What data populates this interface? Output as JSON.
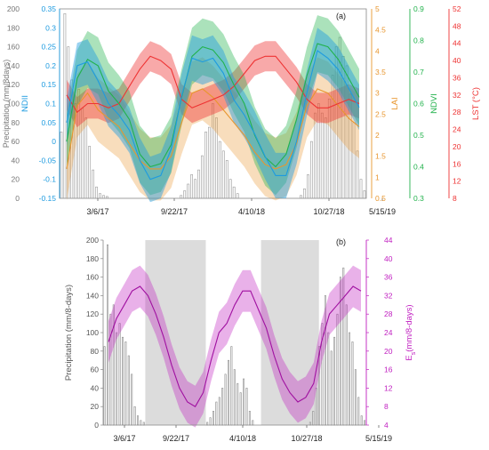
{
  "figure": {
    "panel_a_label": "(a)",
    "panel_b_label": "(b)",
    "colors": {
      "ndii": "#1e9be0",
      "lai": "#e8962e",
      "ndvi": "#22b24c",
      "lst": "#ee3333",
      "es": "#c020c0",
      "precip": "#999999",
      "shade": "#dcdcdc"
    }
  },
  "chart_data": [
    {
      "type": "line",
      "panel": "(a)",
      "x_ticks": [
        "3/6/17",
        "9/22/17",
        "4/10/18",
        "10/27/18",
        "5/15/19"
      ],
      "axes": {
        "precip": {
          "label": "Precipitation (mm/8days)",
          "range": [
            0,
            200
          ],
          "ticks": [
            0,
            20,
            40,
            60,
            80,
            100,
            120,
            140,
            160,
            180,
            200
          ]
        },
        "ndii": {
          "label": "NDII",
          "range": [
            -0.15,
            0.35
          ],
          "ticks": [
            -0.15,
            -0.1,
            -0.05,
            0,
            0.05,
            0.1,
            0.15,
            0.2,
            0.25,
            0.3,
            0.35
          ]
        },
        "lai": {
          "label": "LAI",
          "range": [
            0.5,
            5
          ],
          "ticks": [
            0.5,
            1,
            1.5,
            2,
            2.5,
            3,
            3.5,
            4,
            4.5,
            5
          ]
        },
        "ndvi": {
          "label": "NDVI",
          "range": [
            0.3,
            0.9
          ],
          "ticks": [
            0.3,
            0.4,
            0.5,
            0.6,
            0.7,
            0.8,
            0.9
          ]
        },
        "lst": {
          "label": "LST (°C)",
          "range": [
            8,
            52
          ],
          "ticks": [
            8,
            12,
            16,
            20,
            24,
            28,
            32,
            36,
            40,
            44,
            48,
            52
          ]
        }
      },
      "series": [
        {
          "key": "ndii",
          "axis": "ndii",
          "band": 0.06,
          "values": [
            0.05,
            0.2,
            0.21,
            0.16,
            0.1,
            0.07,
            0.03,
            -0.05,
            -0.1,
            -0.09,
            -0.02,
            0.12,
            0.22,
            0.21,
            0.22,
            0.18,
            0.11,
            0.07,
            0.02,
            -0.04,
            -0.09,
            -0.09,
            0.0,
            0.13,
            0.24,
            0.22,
            0.19,
            0.14,
            0.09
          ]
        },
        {
          "key": "ndvi",
          "axis": "ndvi",
          "band": 0.09,
          "values": [
            0.48,
            0.68,
            0.74,
            0.72,
            0.64,
            0.6,
            0.55,
            0.44,
            0.4,
            0.41,
            0.47,
            0.62,
            0.75,
            0.78,
            0.77,
            0.73,
            0.66,
            0.6,
            0.5,
            0.43,
            0.4,
            0.44,
            0.55,
            0.69,
            0.79,
            0.78,
            0.74,
            0.68,
            0.62
          ]
        },
        {
          "key": "lai",
          "axis": "lai",
          "band": 0.75,
          "values": [
            1.2,
            2.7,
            3.0,
            2.6,
            2.4,
            2.2,
            1.8,
            1.4,
            1.2,
            1.2,
            1.5,
            2.3,
            3.0,
            3.1,
            2.9,
            2.6,
            2.3,
            2.0,
            1.6,
            1.3,
            1.2,
            1.3,
            1.8,
            2.7,
            3.1,
            3.0,
            2.7,
            2.4,
            2.2
          ]
        },
        {
          "key": "lst",
          "axis": "lst",
          "band": 3.5,
          "values": [
            32,
            28,
            30,
            30,
            29,
            30,
            34,
            38,
            41,
            40,
            38,
            31,
            29,
            30,
            31,
            32,
            34,
            37,
            40,
            41,
            41,
            38,
            35,
            31,
            29,
            29,
            30,
            31,
            30
          ]
        }
      ],
      "precip_bars": {
        "axis": "precip",
        "values": [
          70,
          195,
          160,
          125,
          100,
          115,
          95,
          85,
          55,
          30,
          12,
          5,
          3,
          2,
          0,
          0,
          0,
          0,
          0,
          0,
          0,
          0,
          0,
          0,
          0,
          0,
          0,
          0,
          0,
          0,
          0,
          0,
          0,
          0,
          3,
          8,
          15,
          25,
          20,
          30,
          45,
          70,
          75,
          100,
          85,
          60,
          50,
          40,
          20,
          12,
          5,
          0,
          0,
          0,
          0,
          0,
          0,
          0,
          0,
          0,
          0,
          0,
          0,
          0,
          0,
          0,
          0,
          0,
          3,
          10,
          25,
          60,
          90,
          100,
          90,
          85,
          105,
          130,
          160,
          170,
          150,
          140,
          110,
          80,
          50,
          20,
          8
        ]
      }
    },
    {
      "type": "line",
      "panel": "(b)",
      "x_ticks": [
        "3/6/17",
        "9/22/17",
        "4/10/18",
        "10/27/18",
        "5/15/19"
      ],
      "axes": {
        "precip": {
          "label": "Precipitation (mm/8-days)",
          "range": [
            0,
            200
          ],
          "ticks": [
            0,
            20,
            40,
            60,
            80,
            100,
            120,
            140,
            160,
            180,
            200
          ]
        },
        "es": {
          "label_main": "E",
          "label_sub": "s",
          "label_rest": "(mm/8-days)",
          "range": [
            4,
            44
          ],
          "ticks": [
            4,
            8,
            12,
            16,
            20,
            24,
            28,
            32,
            36,
            40,
            44
          ]
        }
      },
      "shaded_periods_fraction": [
        [
          0.16,
          0.39
        ],
        [
          0.6,
          0.82
        ]
      ],
      "series": [
        {
          "key": "es",
          "axis": "es",
          "band": 4.5,
          "values": [
            22,
            27,
            30,
            33,
            34,
            32,
            28,
            23,
            17,
            12,
            9,
            8,
            11,
            18,
            24,
            26,
            30,
            33,
            33,
            29,
            25,
            19,
            14,
            11,
            9,
            10,
            13,
            22,
            28,
            30,
            32,
            34,
            33
          ]
        }
      ],
      "precip_bars": {
        "axis": "precip",
        "values": [
          85,
          195,
          120,
          130,
          100,
          110,
          95,
          90,
          75,
          55,
          20,
          10,
          5,
          3,
          0,
          0,
          0,
          0,
          0,
          0,
          0,
          0,
          0,
          0,
          0,
          0,
          0,
          0,
          0,
          0,
          0,
          0,
          0,
          0,
          3,
          8,
          15,
          25,
          30,
          40,
          55,
          70,
          85,
          60,
          45,
          35,
          50,
          40,
          15,
          5,
          0,
          0,
          0,
          0,
          0,
          0,
          0,
          0,
          0,
          0,
          0,
          0,
          0,
          0,
          0,
          0,
          0,
          0,
          3,
          15,
          40,
          85,
          110,
          140,
          100,
          80,
          95,
          120,
          160,
          170,
          130,
          100,
          90,
          60,
          30,
          10,
          5
        ]
      }
    }
  ]
}
